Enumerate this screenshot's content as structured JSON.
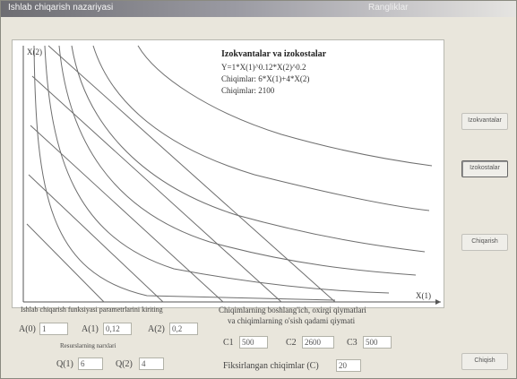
{
  "window": {
    "title": "Ishlab chiqarish nazariyasi",
    "title_right": "Rangliklar"
  },
  "buttons": {
    "izokvantalar": "Izokvantalar",
    "izokostalar": "Izokostalar",
    "chiqarish": "Chiqarish",
    "chiqish": "Chiqish"
  },
  "plot": {
    "y_axis_label": "X(2)",
    "x_axis_label": "X(1)",
    "info_title": "Izokvantalar va izokostalar",
    "info_func": "Y=1*X(1)^0.12*X(2)^0.2",
    "info_cost": "Chiqimlar: 6*X(1)+4*X(2)",
    "info_budget": "Chiqimlar: 2100"
  },
  "params": {
    "heading": "Ishlab chiqarish funksiyasi parametrlarini kiriting",
    "a0_label": "A(0)",
    "a0_value": "1",
    "a1_label": "A(1)",
    "a1_value": "0,12",
    "a2_label": "A(2)",
    "a2_value": "0,2",
    "prices_heading": "Resurslarning narxlari",
    "q1_label": "Q(1)",
    "q1_value": "6",
    "q2_label": "Q(2)",
    "q2_value": "4"
  },
  "costs": {
    "heading_line1": "Chiqimlarning boshlang'ich, oxirgi qiymatlari",
    "heading_line2": "va chiqimlarning o'sish qadami qiymati",
    "c1_label": "C1",
    "c1_value": "500",
    "c2_label": "C2",
    "c2_value": "2600",
    "c3_label": "C3",
    "c3_value": "500",
    "fixed_label": "Fiksirlangan chiqimlar (C)",
    "fixed_value": "20"
  },
  "colors": {
    "curve": "#6e6e6e",
    "axis": "#555555",
    "title_bar_start": "#6d6d72"
  },
  "icons": {
    "axis_arrow": "arrow-icon"
  }
}
